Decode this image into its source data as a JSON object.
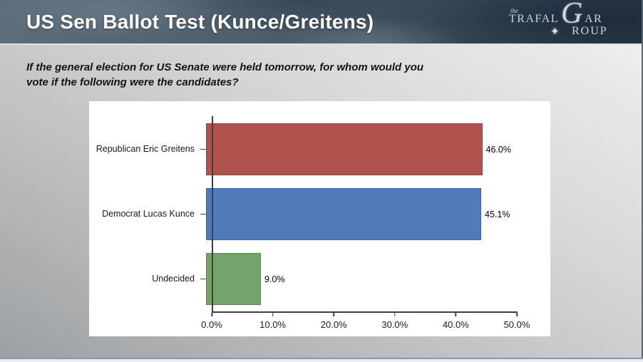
{
  "header": {
    "title": "US Sen Ballot Test (Kunce/Greitens)",
    "logo": {
      "the": "the",
      "part1": "TRAFAL",
      "g": "G",
      "part2": "AR",
      "part3": "ROUP",
      "compass_icon": "✦"
    }
  },
  "question": {
    "full": "If the general election for US Senate were held tomorrow, for whom would you vote if the following were the candidates?",
    "lines": [
      "If the general election for US Senate were held tomorrow, for whom would you",
      "vote if the following were the candidates?"
    ]
  },
  "chart_data": {
    "type": "bar",
    "orientation": "horizontal",
    "title": "",
    "xlabel": "",
    "ylabel": "",
    "categories": [
      "Republican Eric Greitens",
      "Democrat Lucas Kunce",
      "Undecided"
    ],
    "values": [
      46.0,
      45.1,
      9.0
    ],
    "value_labels": [
      "46.0%",
      "45.1%",
      "9.0%"
    ],
    "bar_colors": [
      "#b0534f",
      "#4f7bba",
      "#74a46c"
    ],
    "x_ticks": [
      "0.0%",
      "10.0%",
      "20.0%",
      "30.0%",
      "40.0%",
      "50.0%"
    ],
    "xlim": [
      0,
      50
    ],
    "grid": false,
    "legend": "none",
    "plot_background": "#ffffff"
  },
  "colors": {
    "header_background": "#3c4c5a",
    "title_text": "#ffffff",
    "logo_text": "#ccd6dd",
    "slide_background_top": "#f2f2f2",
    "slide_background_bottom": "#9da0a2"
  }
}
